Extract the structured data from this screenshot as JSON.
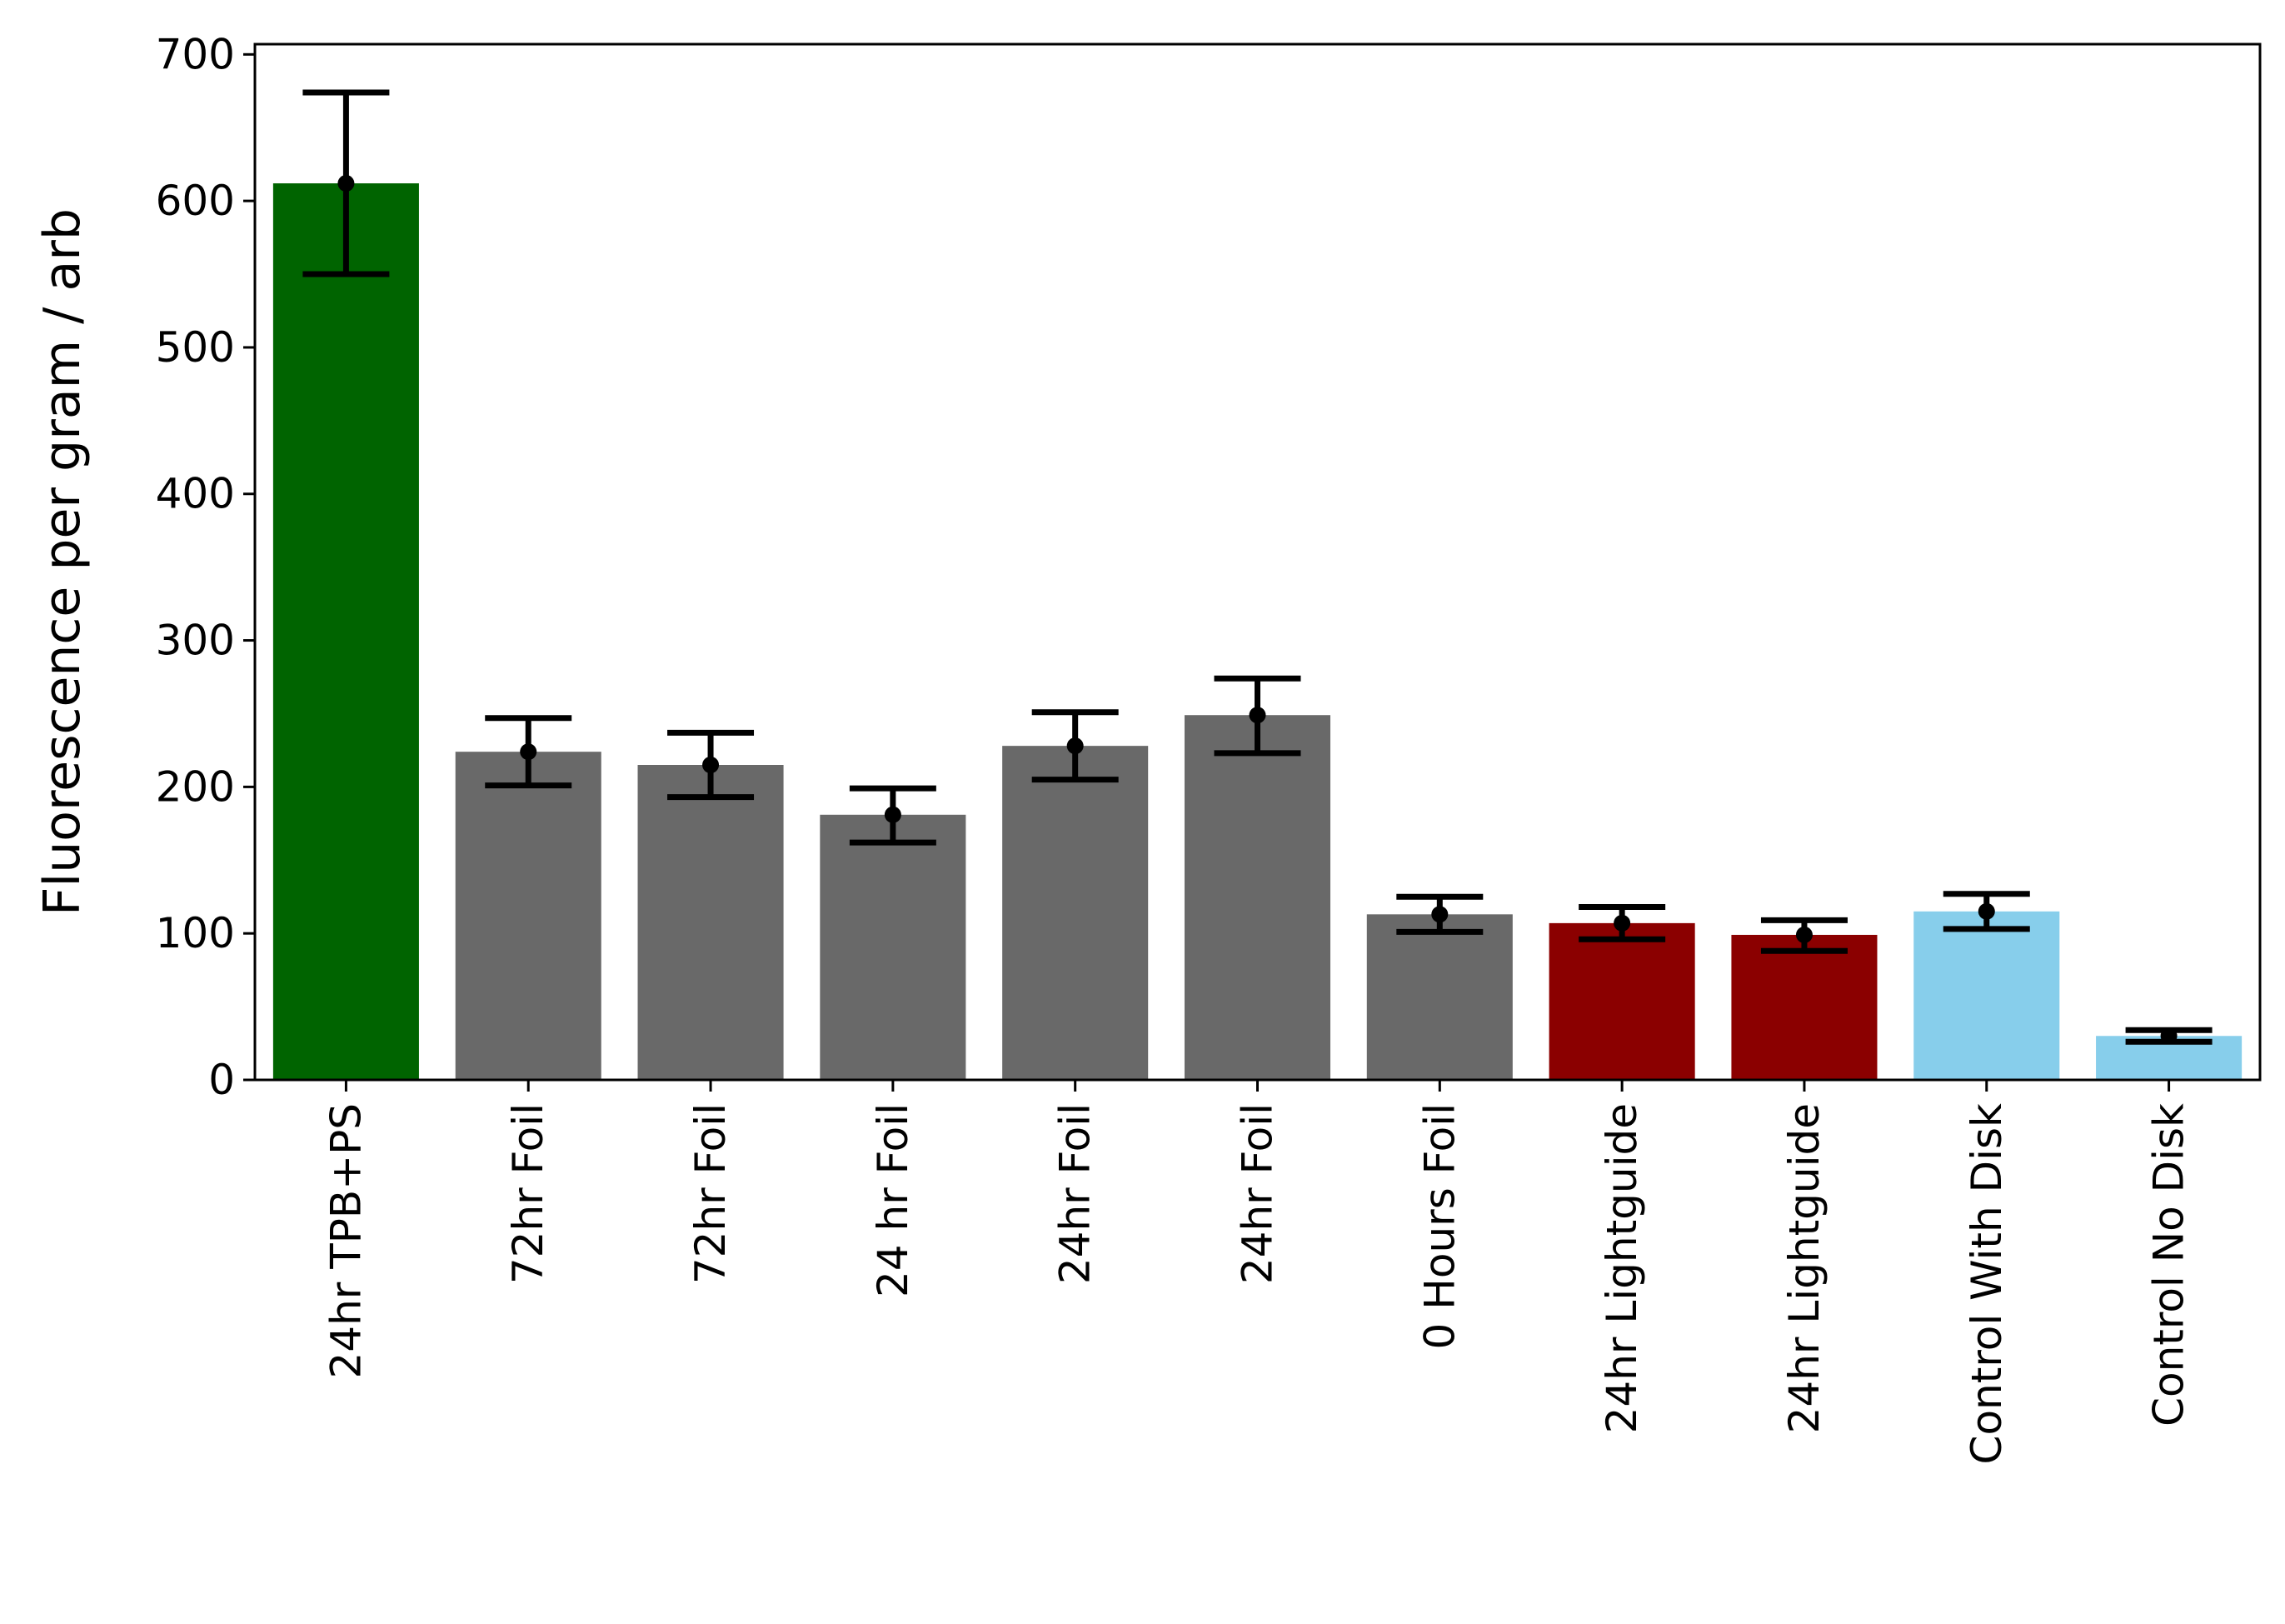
{
  "chart_data": {
    "type": "bar",
    "ylabel": "Fluorescence per gram / arb",
    "xlabel": "",
    "title": "",
    "ylim": [
      0,
      707
    ],
    "yticks": [
      0,
      100,
      200,
      300,
      400,
      500,
      600,
      700
    ],
    "grid": false,
    "categories": [
      "24hr TPB+PS",
      "72hr Foil",
      "72hr Foil",
      "24 hr Foil",
      "24hr Foil",
      "24hr Foil",
      "0 Hours Foil",
      "24hr Lightguide",
      "24hr Lightguide",
      "Control With Disk",
      "Control No Disk"
    ],
    "values": [
      612,
      224,
      215,
      181,
      228,
      249,
      113,
      107,
      99,
      115,
      30
    ],
    "error_low": [
      550,
      201,
      193,
      162,
      205,
      223,
      101,
      96,
      88,
      103,
      26
    ],
    "error_high": [
      674,
      247,
      237,
      199,
      251,
      274,
      125,
      118,
      109,
      127,
      34
    ],
    "colors": [
      "#006400",
      "#696969",
      "#696969",
      "#696969",
      "#696969",
      "#696969",
      "#696969",
      "#8b0000",
      "#8b0000",
      "#87ceeb",
      "#87ceeb"
    ],
    "errorbar_color": "#000000"
  }
}
